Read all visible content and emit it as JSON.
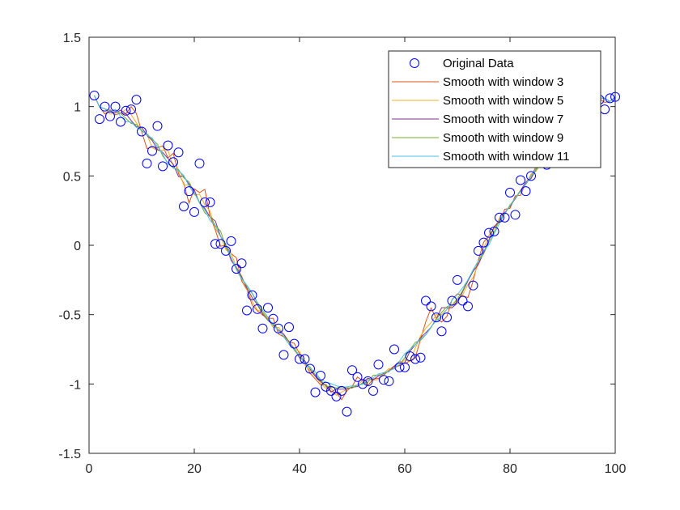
{
  "chart_data": {
    "type": "line",
    "title": "",
    "xlabel": "",
    "ylabel": "",
    "xlim": [
      0,
      100
    ],
    "ylim": [
      -1.5,
      1.5
    ],
    "xticks": [
      0,
      20,
      40,
      60,
      80,
      100
    ],
    "yticks": [
      -1.5,
      -1,
      -0.5,
      0,
      0.5,
      1,
      1.5
    ],
    "xtick_labels": [
      "0",
      "20",
      "40",
      "60",
      "80",
      "100"
    ],
    "ytick_labels": [
      "-1.5",
      "-1",
      "-0.5",
      "0",
      "0.5",
      "1",
      "1.5"
    ],
    "grid": false,
    "box": true,
    "legend_position": "top-right",
    "scatter": {
      "name": "Original Data",
      "marker": "circle-open",
      "color": "#0000ff",
      "x": [
        1,
        2,
        3,
        4,
        5,
        6,
        7,
        8,
        9,
        10,
        11,
        12,
        13,
        14,
        15,
        16,
        17,
        18,
        19,
        20,
        21,
        22,
        23,
        24,
        25,
        26,
        27,
        28,
        29,
        30,
        31,
        32,
        33,
        34,
        35,
        36,
        37,
        38,
        39,
        40,
        41,
        42,
        43,
        44,
        45,
        46,
        47,
        48,
        49,
        50,
        51,
        52,
        53,
        54,
        55,
        56,
        57,
        58,
        59,
        60,
        61,
        62,
        63,
        64,
        65,
        66,
        67,
        68,
        69,
        70,
        71,
        72,
        73,
        74,
        75,
        76,
        77,
        78,
        79,
        80,
        81,
        82,
        83,
        84,
        85,
        86,
        87,
        88,
        89,
        90,
        91,
        92,
        93,
        94,
        95,
        96,
        97,
        98,
        99,
        100
      ],
      "y": [
        1.08,
        0.91,
        1.0,
        0.93,
        1.0,
        0.89,
        0.97,
        0.98,
        1.05,
        0.82,
        0.59,
        0.68,
        0.86,
        0.57,
        0.72,
        0.6,
        0.67,
        0.28,
        0.39,
        0.24,
        0.59,
        0.31,
        0.31,
        0.01,
        0.01,
        -0.04,
        0.03,
        -0.17,
        -0.13,
        -0.47,
        -0.36,
        -0.46,
        -0.6,
        -0.45,
        -0.53,
        -0.6,
        -0.79,
        -0.59,
        -0.71,
        -0.82,
        -0.82,
        -0.89,
        -1.06,
        -0.94,
        -1.02,
        -1.05,
        -1.09,
        -1.05,
        -1.2,
        -0.9,
        -0.95,
        -1.0,
        -0.98,
        -1.05,
        -0.86,
        -0.97,
        -0.98,
        -0.75,
        -0.88,
        -0.88,
        -0.8,
        -0.82,
        -0.81,
        -0.4,
        -0.44,
        -0.52,
        -0.62,
        -0.52,
        -0.4,
        -0.25,
        -0.4,
        -0.44,
        -0.29,
        -0.04,
        0.02,
        0.09,
        0.1,
        0.2,
        0.2,
        0.38,
        0.22,
        0.47,
        0.39,
        0.5,
        0.61,
        0.6,
        0.58,
        0.71,
        0.84,
        0.83,
        1.01,
        0.96,
        1.05,
        1.04,
        1.08,
        1.14,
        1.05,
        0.98,
        1.06,
        1.07
      ]
    },
    "series": [
      {
        "name": "Smooth with window 3",
        "color": "#d95319",
        "window": 3
      },
      {
        "name": "Smooth with window 5",
        "color": "#edb120",
        "window": 5
      },
      {
        "name": "Smooth with window 7",
        "color": "#7e2f8e",
        "window": 7
      },
      {
        "name": "Smooth with window 9",
        "color": "#77ac30",
        "window": 9
      },
      {
        "name": "Smooth with window 11",
        "color": "#4dbeee",
        "window": 11
      }
    ]
  }
}
